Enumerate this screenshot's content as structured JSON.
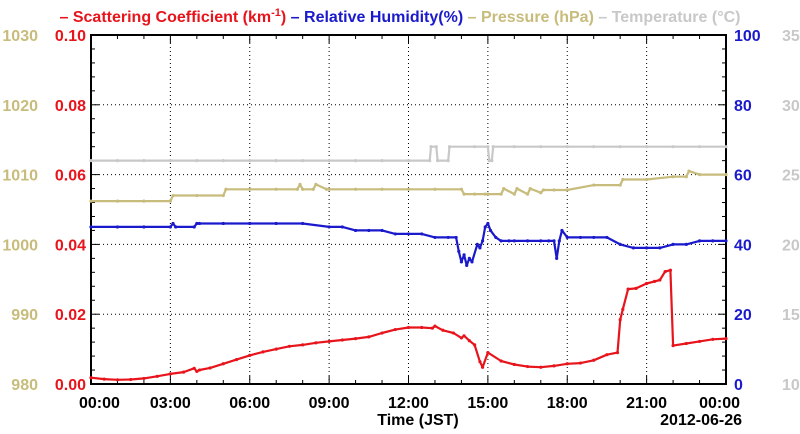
{
  "chart_data": {
    "type": "line",
    "date_label": "2012-06-26",
    "xlabel": "Time (JST)",
    "x_ticks": [
      "00:00",
      "03:00",
      "06:00",
      "09:00",
      "12:00",
      "15:00",
      "18:00",
      "21:00",
      "00:00"
    ],
    "legend": [
      {
        "key": "scattering",
        "prefix": "– ",
        "label": "Scattering Coefficient (km",
        "sup": "-1",
        "suffix": ")",
        "color": "#e8141c"
      },
      {
        "key": "humidity",
        "prefix": " – ",
        "label": "Relative Humidity(%)",
        "sup": "",
        "suffix": "",
        "color": "#1a1acc"
      },
      {
        "key": "pressure",
        "prefix": " – ",
        "label": "Pressure (hPa)",
        "sup": "",
        "suffix": "",
        "color": "#c8bc7c"
      },
      {
        "key": "temperature",
        "prefix": " – ",
        "label": "Temperature (°C)",
        "sup": "",
        "suffix": "",
        "color": "#c8c8c8"
      }
    ],
    "axes": {
      "pressure": {
        "ylim": [
          980,
          1030
        ],
        "ticks": [
          "980",
          "990",
          "1000",
          "1010",
          "1020",
          "1030"
        ],
        "color": "#c8bc7c"
      },
      "scattering": {
        "ylim": [
          0.0,
          0.1
        ],
        "ticks": [
          "0.00",
          "0.02",
          "0.04",
          "0.06",
          "0.08",
          "0.10"
        ],
        "color": "#e8141c"
      },
      "humidity": {
        "ylim": [
          0,
          100
        ],
        "ticks": [
          "0",
          "20",
          "40",
          "60",
          "80",
          "100"
        ],
        "color": "#1a1acc"
      },
      "temperature": {
        "ylim": [
          10,
          35
        ],
        "ticks": [
          "10",
          "15",
          "20",
          "25",
          "30",
          "35"
        ],
        "color": "#c8c8c8"
      }
    },
    "x_range_hours": [
      0,
      24
    ],
    "grid": true,
    "series": [
      {
        "name": "Scattering Coefficient",
        "axis": "scattering",
        "color": "#e8141c",
        "x": [
          0,
          0.5,
          1,
          1.5,
          2,
          2.5,
          3,
          3.5,
          3.9,
          4,
          4.1,
          4.5,
          5,
          5.5,
          6,
          6.5,
          7,
          7.5,
          8,
          8.5,
          9,
          9.5,
          10,
          10.5,
          11,
          11.5,
          12,
          12.5,
          12.9,
          13.0,
          13.3,
          13.7,
          14.0,
          14.1,
          14.3,
          14.5,
          14.7,
          14.8,
          15,
          15.5,
          16,
          16.5,
          17,
          17.5,
          18,
          18.5,
          19,
          19.5,
          19.9,
          20.0,
          20.1,
          20.3,
          20.6,
          21,
          21.3,
          21.5,
          21.7,
          21.9,
          22.0,
          22.5,
          23,
          23.5,
          24
        ],
        "y": [
          0.0018,
          0.0014,
          0.0012,
          0.0013,
          0.0016,
          0.0022,
          0.0029,
          0.0034,
          0.0045,
          0.0036,
          0.004,
          0.0046,
          0.0058,
          0.007,
          0.0082,
          0.0092,
          0.01,
          0.0108,
          0.0112,
          0.0118,
          0.0122,
          0.0126,
          0.013,
          0.0135,
          0.0146,
          0.0156,
          0.0162,
          0.0162,
          0.016,
          0.0166,
          0.0154,
          0.0146,
          0.0132,
          0.0138,
          0.0124,
          0.0112,
          0.0064,
          0.0048,
          0.009,
          0.0066,
          0.0056,
          0.005,
          0.0048,
          0.0052,
          0.0058,
          0.006,
          0.0068,
          0.0084,
          0.009,
          0.0184,
          0.0214,
          0.0272,
          0.0274,
          0.0288,
          0.0294,
          0.0298,
          0.0322,
          0.0326,
          0.011,
          0.0116,
          0.0122,
          0.0128,
          0.013
        ]
      },
      {
        "name": "Relative Humidity",
        "axis": "humidity",
        "color": "#1a1acc",
        "x": [
          0,
          1,
          2,
          3,
          3.1,
          3.2,
          3.9,
          4,
          4.1,
          5,
          6,
          7,
          8,
          9,
          9.5,
          10,
          10.5,
          11,
          11.5,
          12,
          12.5,
          13,
          13.5,
          13.8,
          13.9,
          14.0,
          14.1,
          14.2,
          14.3,
          14.4,
          14.6,
          14.7,
          14.8,
          14.9,
          15.0,
          15.1,
          15.3,
          15.5,
          15.8,
          16,
          16.5,
          17,
          17.3,
          17.5,
          17.6,
          17.7,
          17.8,
          18,
          18.5,
          19,
          19.5,
          20,
          20.5,
          21,
          21.5,
          22,
          22.5,
          23,
          23.5,
          24
        ],
        "y": [
          45,
          45,
          45,
          45,
          46,
          45,
          45,
          46,
          46,
          46,
          46,
          46,
          46,
          45,
          45,
          44,
          44,
          44,
          43,
          43,
          43,
          42,
          42,
          42,
          38,
          35,
          37,
          34,
          36,
          35,
          40,
          39,
          41,
          45,
          46,
          44,
          42,
          41,
          41,
          41,
          41,
          41,
          41,
          41,
          36,
          41,
          44,
          42,
          42,
          42,
          42,
          40,
          39,
          39,
          39,
          40,
          40,
          41,
          41,
          41
        ]
      },
      {
        "name": "Pressure",
        "axis": "pressure",
        "color": "#c8bc7c",
        "x": [
          0,
          1,
          2,
          3,
          3.1,
          4,
          5,
          5.1,
          6,
          7,
          7.8,
          7.9,
          8.0,
          8.4,
          8.5,
          8.9,
          9,
          10,
          11,
          12,
          13,
          14,
          14.1,
          14.5,
          14.9,
          15,
          15.5,
          15.6,
          16,
          16.1,
          16.5,
          16.6,
          17,
          17.1,
          17.5,
          18,
          19,
          20,
          20.1,
          21,
          22,
          22.5,
          22.6,
          23,
          24
        ],
        "y": [
          1006.2,
          1006.2,
          1006.2,
          1006.2,
          1007.0,
          1007.0,
          1007.0,
          1007.9,
          1007.9,
          1007.9,
          1007.9,
          1008.6,
          1007.9,
          1007.9,
          1008.6,
          1007.9,
          1007.9,
          1007.9,
          1007.9,
          1007.9,
          1007.9,
          1007.9,
          1007.2,
          1007.2,
          1007.2,
          1007.2,
          1007.2,
          1008.0,
          1007.2,
          1008.0,
          1007.2,
          1008.0,
          1007.4,
          1007.8,
          1007.8,
          1007.8,
          1008.5,
          1008.5,
          1009.3,
          1009.3,
          1009.7,
          1009.7,
          1010.5,
          1010.0,
          1010.0
        ]
      },
      {
        "name": "Temperature",
        "axis": "temperature",
        "color": "#c8c8c8",
        "x": [
          0,
          1,
          2,
          3,
          4,
          5,
          6,
          7,
          8,
          9,
          10,
          11,
          12,
          12.8,
          12.85,
          13.05,
          13.1,
          13.5,
          13.55,
          14.5,
          15.0,
          15.05,
          15.15,
          15.2,
          16,
          17,
          18,
          19,
          20,
          21,
          22,
          23,
          24
        ],
        "y": [
          26.0,
          26.0,
          26.0,
          26.0,
          26.0,
          26.0,
          26.0,
          26.0,
          26.0,
          26.0,
          26.0,
          26.0,
          26.0,
          26.0,
          27.0,
          27.0,
          26.0,
          26.0,
          27.0,
          27.0,
          27.0,
          26.0,
          26.0,
          27.0,
          27.0,
          27.0,
          27.0,
          27.0,
          27.0,
          27.0,
          27.0,
          27.0,
          27.0
        ]
      }
    ]
  }
}
